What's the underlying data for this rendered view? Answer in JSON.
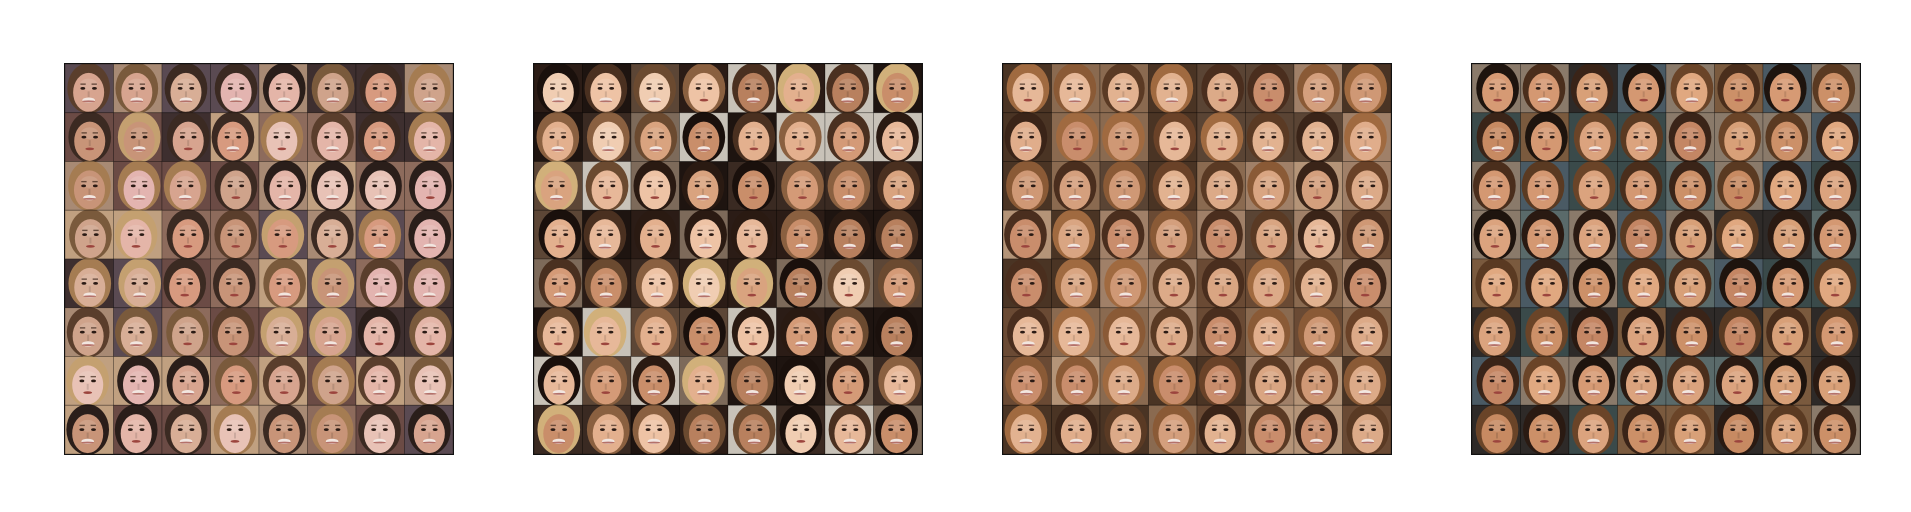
{
  "figure": {
    "panels": [
      {
        "id": "grid-1",
        "style": "pinkish",
        "rows": 8,
        "cols": 8,
        "bg_colors": [
          "#6b4b45",
          "#a88a74",
          "#3e2f2f",
          "#8d6b5c",
          "#5a4a52",
          "#c0a080"
        ],
        "skin_colors": [
          "#e4b5a8",
          "#d7a48f",
          "#e8c2b6",
          "#d79a7f",
          "#cfa38b",
          "#e3b4b0",
          "#d8ae96",
          "#c89478"
        ],
        "hair_colors": [
          "#3b2a22",
          "#7a5a3c",
          "#2a1e1a",
          "#a57c52",
          "#5a3e2c",
          "#c4a070"
        ]
      },
      {
        "id": "grid-2",
        "style": "mixed",
        "rows": 8,
        "cols": 8,
        "bg_colors": [
          "#2b1c16",
          "#3a2a22",
          "#7d6a5a",
          "#c8c2b8",
          "#1e1410",
          "#5c4636"
        ],
        "skin_colors": [
          "#e3b08e",
          "#d9a37f",
          "#eec3a5",
          "#c98e6a",
          "#e7b899",
          "#d49a77",
          "#f0cdb2",
          "#b8805e"
        ],
        "hair_colors": [
          "#2a1a12",
          "#4a3020",
          "#6b4a30",
          "#d1b07a",
          "#1a100c",
          "#8a6040"
        ]
      },
      {
        "id": "grid-3",
        "style": "warm",
        "rows": 8,
        "cols": 8,
        "bg_colors": [
          "#6a4a34",
          "#8a6a50",
          "#4a3424",
          "#a08068",
          "#5a4434",
          "#b49478"
        ],
        "skin_colors": [
          "#d9a582",
          "#e0ad8b",
          "#cf9875",
          "#e6b898",
          "#d49f7d",
          "#c98d6c",
          "#dcaa88",
          "#e2b290"
        ],
        "hair_colors": [
          "#4a2e1e",
          "#6a4228",
          "#8a5a36",
          "#3a2418",
          "#a06a40",
          "#5a3a24"
        ]
      },
      {
        "id": "grid-4",
        "style": "male",
        "rows": 8,
        "cols": 8,
        "bg_colors": [
          "#3a4a4a",
          "#5a6a6a",
          "#7a5a3e",
          "#2e2a28",
          "#4a5a64",
          "#8a7a6a"
        ],
        "skin_colors": [
          "#d69a74",
          "#cc9068",
          "#dba37e",
          "#c78a62",
          "#d49872",
          "#e0a880",
          "#c48664",
          "#d8a078"
        ],
        "hair_colors": [
          "#2a1a12",
          "#3a2418",
          "#4a2e1c",
          "#1e140e",
          "#5a3a22",
          "#6a4428"
        ]
      }
    ]
  }
}
